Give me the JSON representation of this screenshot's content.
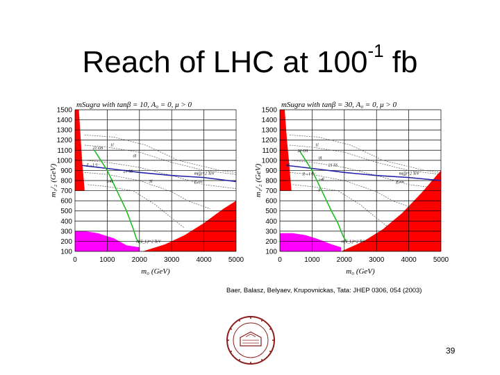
{
  "slide": {
    "title_main": "Reach of LHC at 100",
    "title_sup": "-1",
    "title_end": " fb",
    "citation": "Baer, Balasz, Belyaev, Krupovnickas, Tata: JHEP 0306, 054 (2003)",
    "page_number": "39",
    "seal_text": "UNIVERSITAS BOSTONIENSIS · CONDITA MDCCCLXIX"
  },
  "colors": {
    "excluded_theory": "#ff0000",
    "excluded_lep": "#ff00ff",
    "gluino_contour": "#2222aa",
    "squark_contour": "#22bb22",
    "grid": "#000000"
  },
  "chart_data": [
    {
      "type": "line",
      "title": "mSugra with tanβ = 10, A₀ = 0, μ > 0",
      "xlabel": "m₀ (GeV)",
      "ylabel": "m₁/₂ (GeV)",
      "xlim": [
        0,
        5000
      ],
      "ylim": [
        100,
        1500
      ],
      "xticks": [
        0,
        1000,
        2000,
        3000,
        4000,
        5000
      ],
      "yticks": [
        1500,
        1400,
        1300,
        1200,
        1100,
        1000,
        900,
        800,
        700,
        600,
        500,
        400,
        300,
        200,
        100
      ],
      "grid": true,
      "regions": [
        {
          "name": "red-left",
          "x": [
            0,
            120,
            180,
            220,
            260,
            300,
            0
          ],
          "y": [
            1500,
            1500,
            1200,
            1000,
            850,
            700,
            700
          ]
        },
        {
          "name": "red-right",
          "x": [
            2100,
            2800,
            3400,
            4000,
            4600,
            5000,
            5000,
            2100
          ],
          "y": [
            100,
            170,
            260,
            380,
            520,
            600,
            100,
            100
          ]
        },
        {
          "name": "magenta",
          "x": [
            0,
            300,
            700,
            1200,
            1600,
            2000,
            2000,
            0
          ],
          "y": [
            300,
            300,
            280,
            230,
            160,
            140,
            100,
            100
          ]
        }
      ],
      "series": [
        {
          "name": "m(g̃)=2 TeV",
          "x": [
            200,
            1000,
            2000,
            3000,
            4000,
            5000
          ],
          "y": [
            950,
            920,
            880,
            850,
            830,
            790
          ]
        },
        {
          "name": "m(ũ_L)=2 TeV",
          "x": [
            600,
            1000,
            1300,
            1600,
            1800,
            1900,
            2000
          ],
          "y": [
            1100,
            900,
            700,
            500,
            330,
            230,
            180
          ]
        }
      ],
      "annotations": [
        "21 OS",
        "1l",
        "0l",
        "Z→l⁺l⁻",
        "21 SS",
        "≥4l",
        "3l",
        "Eₜᵐⁱˢˢ",
        "m(g̃)=2 TeV",
        "m(ũ_L)=2 TeV"
      ]
    },
    {
      "type": "line",
      "title": "mSugra with tanβ = 30, A₀ = 0, μ > 0",
      "xlabel": "m₀ (GeV)",
      "ylabel": "m₁/₂ (GeV)",
      "xlim": [
        0,
        5000
      ],
      "ylim": [
        100,
        1500
      ],
      "xticks": [
        0,
        1000,
        2000,
        3000,
        4000,
        5000
      ],
      "yticks": [
        1500,
        1400,
        1300,
        1200,
        1100,
        1000,
        900,
        800,
        700,
        600,
        500,
        400,
        300,
        200,
        100
      ],
      "grid": true,
      "regions": [
        {
          "name": "red-left",
          "x": [
            0,
            150,
            220,
            280,
            320,
            360,
            0
          ],
          "y": [
            1500,
            1500,
            1200,
            1000,
            850,
            700,
            700
          ]
        },
        {
          "name": "red-right",
          "x": [
            1900,
            2600,
            3200,
            3800,
            4400,
            5000,
            5000,
            1900
          ],
          "y": [
            100,
            200,
            320,
            480,
            680,
            900,
            100,
            100
          ]
        },
        {
          "name": "magenta",
          "x": [
            0,
            400,
            800,
            1200,
            1600,
            1900,
            1900,
            0
          ],
          "y": [
            280,
            280,
            260,
            220,
            170,
            140,
            100,
            100
          ]
        }
      ],
      "series": [
        {
          "name": "m(g̃)=2 TeV",
          "x": [
            200,
            1000,
            2000,
            3000,
            4000,
            5000
          ],
          "y": [
            950,
            920,
            880,
            850,
            830,
            800
          ]
        },
        {
          "name": "m(ũ_L)=2 TeV",
          "x": [
            600,
            1000,
            1300,
            1600,
            1800,
            1950,
            2050
          ],
          "y": [
            1100,
            900,
            700,
            500,
            380,
            260,
            200
          ]
        }
      ],
      "annotations": [
        "21 OS",
        "1l",
        "0l",
        "3l",
        "21 SS",
        "Z→l⁺l⁻",
        "≥4l",
        "γ",
        "Eₜᵐⁱˢˢ",
        "m(g̃)=2 TeV",
        "m(ũ_L)=2 TeV"
      ]
    }
  ]
}
